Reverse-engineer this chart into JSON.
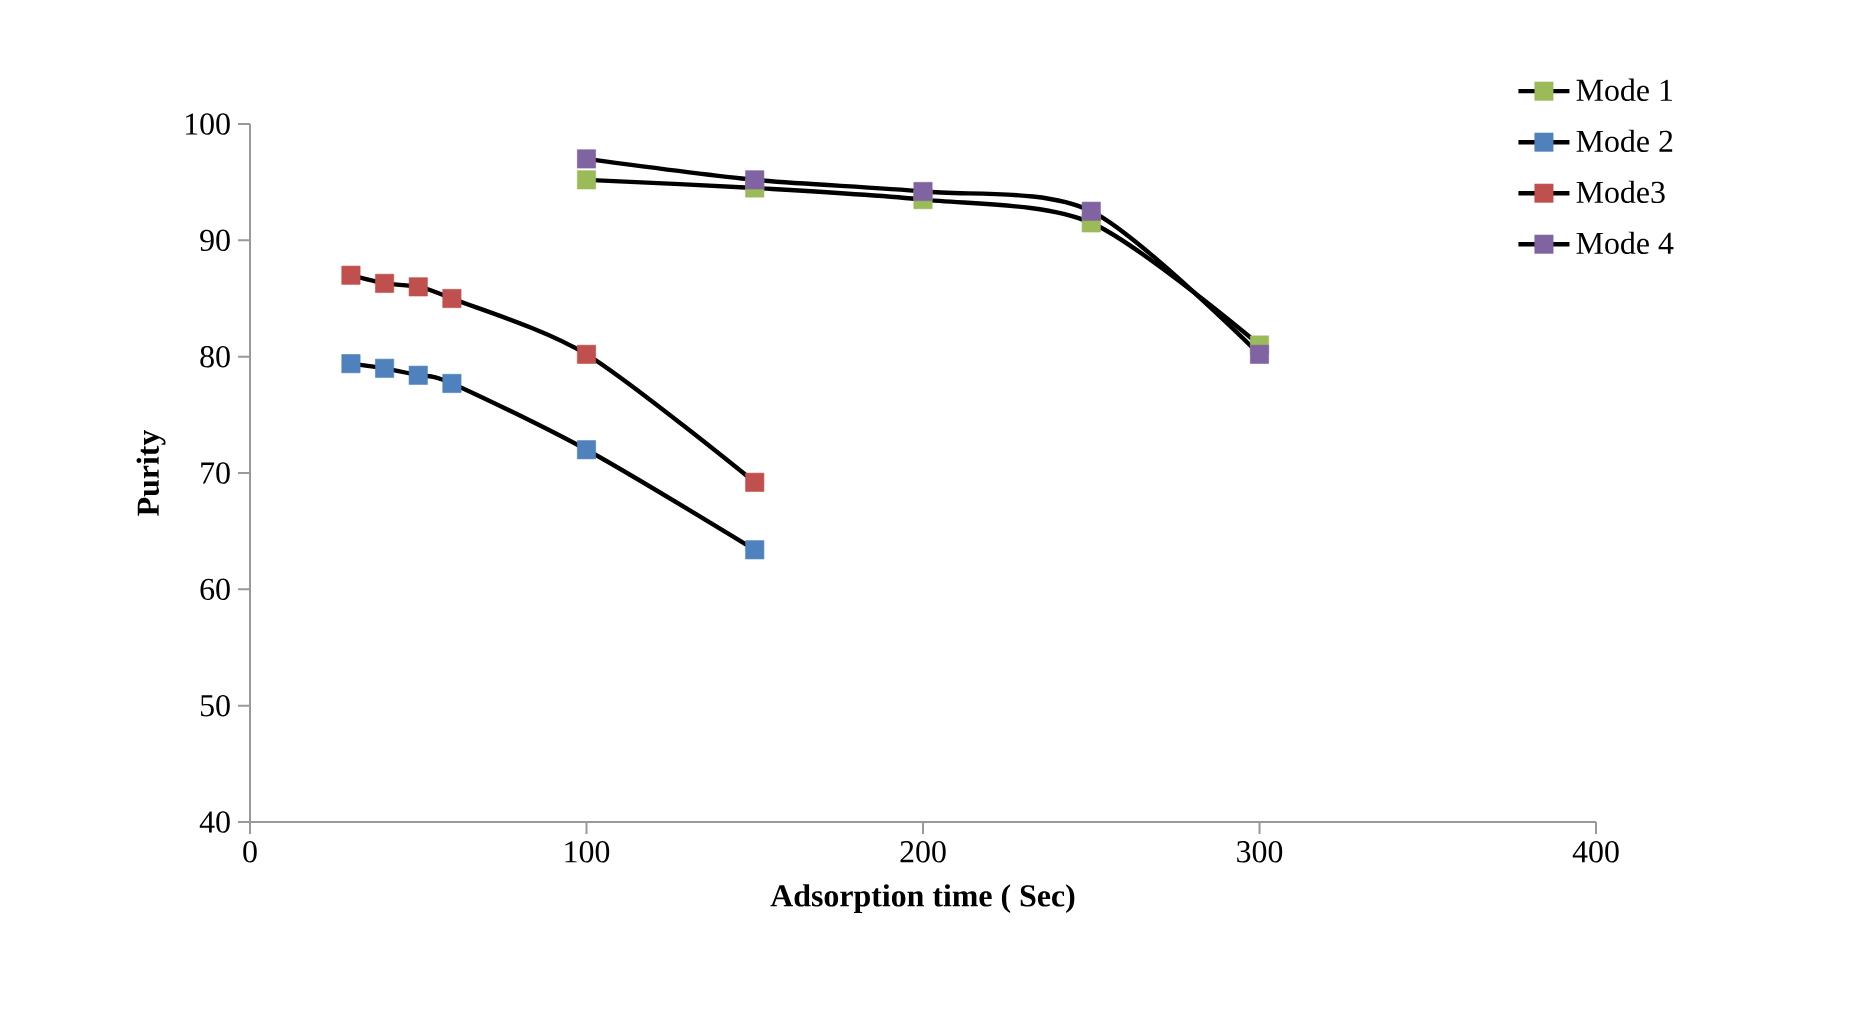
{
  "chart_data": {
    "type": "line",
    "xlabel": "Adsorption  time ( Sec)",
    "ylabel": "Purity",
    "xlim": [
      0,
      400
    ],
    "xticks": [
      0,
      100,
      200,
      300,
      400
    ],
    "ylim": [
      40,
      100
    ],
    "yticks": [
      40,
      50,
      60,
      70,
      80,
      90,
      100
    ],
    "marker": "square",
    "line_style": "solid",
    "legend": "top right",
    "series": [
      {
        "name": "Mode 1",
        "color": "#9bbb59",
        "x": [
          100,
          150,
          200,
          250,
          300
        ],
        "values": [
          95.2,
          94.5,
          93.5,
          91.5,
          81
        ]
      },
      {
        "name": "Mode 2",
        "color": "#4f81bd",
        "x": [
          30,
          40,
          50,
          60,
          100,
          150
        ],
        "values": [
          79.4,
          79,
          78.4,
          77.7,
          72,
          63.4
        ]
      },
      {
        "name": "Mode3",
        "color": "#c0504d",
        "x": [
          30,
          40,
          50,
          60,
          100,
          150
        ],
        "values": [
          87,
          86.3,
          86,
          85,
          80.2,
          69.2
        ]
      },
      {
        "name": "Mode 4",
        "color": "#8064a2",
        "x": [
          100,
          150,
          200,
          250,
          300
        ],
        "values": [
          97,
          95.2,
          94.2,
          92.5,
          80.2
        ]
      }
    ]
  }
}
